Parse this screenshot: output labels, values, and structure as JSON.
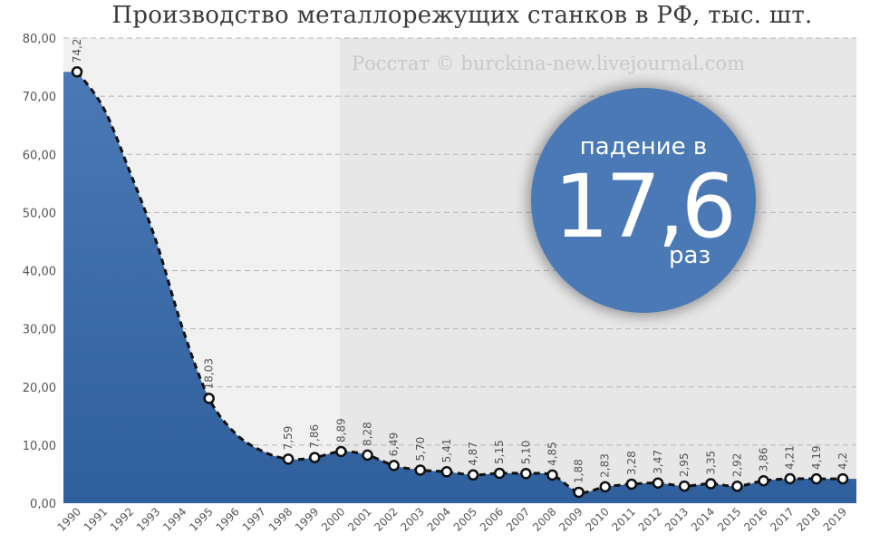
{
  "chart_data": {
    "type": "area",
    "title": "Производство металлорежущих станков в РФ, тыс. шт.",
    "watermark": "Росстат © burckina-new.livejournal.com",
    "callout": {
      "line1": "падение в",
      "number": "17,6",
      "line2": "раз"
    },
    "x": [
      "1990",
      "1991",
      "1992",
      "1993",
      "1994",
      "1995",
      "1996",
      "1997",
      "1998",
      "1999",
      "2000",
      "2001",
      "2002",
      "2003",
      "2004",
      "2005",
      "2006",
      "2007",
      "2008",
      "2009",
      "2010",
      "2011",
      "2012",
      "2013",
      "2014",
      "2015",
      "2016",
      "2017",
      "2018",
      "2019"
    ],
    "labeled_points": [
      {
        "x": "1990",
        "y": 74.2,
        "label": "74,2"
      },
      {
        "x": "1995",
        "y": 18.03,
        "label": "18,03"
      },
      {
        "x": "1998",
        "y": 7.59,
        "label": "7,59"
      },
      {
        "x": "1999",
        "y": 7.86,
        "label": "7,86"
      },
      {
        "x": "2000",
        "y": 8.89,
        "label": "8,89"
      },
      {
        "x": "2001",
        "y": 8.28,
        "label": "8,28"
      },
      {
        "x": "2002",
        "y": 6.49,
        "label": "6,49"
      },
      {
        "x": "2003",
        "y": 5.7,
        "label": "5,70"
      },
      {
        "x": "2004",
        "y": 5.41,
        "label": "5,41"
      },
      {
        "x": "2005",
        "y": 4.87,
        "label": "4,87"
      },
      {
        "x": "2006",
        "y": 5.15,
        "label": "5,15"
      },
      {
        "x": "2007",
        "y": 5.1,
        "label": "5,10"
      },
      {
        "x": "2008",
        "y": 4.85,
        "label": "4,85"
      },
      {
        "x": "2009",
        "y": 1.88,
        "label": "1,88"
      },
      {
        "x": "2010",
        "y": 2.83,
        "label": "2,83"
      },
      {
        "x": "2011",
        "y": 3.28,
        "label": "3,28"
      },
      {
        "x": "2012",
        "y": 3.47,
        "label": "3,47"
      },
      {
        "x": "2013",
        "y": 2.95,
        "label": "2,95"
      },
      {
        "x": "2014",
        "y": 3.35,
        "label": "3,35"
      },
      {
        "x": "2015",
        "y": 2.92,
        "label": "2,92"
      },
      {
        "x": "2016",
        "y": 3.86,
        "label": "3,86"
      },
      {
        "x": "2017",
        "y": 4.21,
        "label": "4,21"
      },
      {
        "x": "2018",
        "y": 4.19,
        "label": "4,19"
      },
      {
        "x": "2019",
        "y": 4.2,
        "label": "4,2"
      }
    ],
    "interpolated_curve": [
      {
        "x": "1991",
        "y": 68
      },
      {
        "x": "1992",
        "y": 57
      },
      {
        "x": "1993",
        "y": 45
      },
      {
        "x": "1994",
        "y": 30
      },
      {
        "x": "1996",
        "y": 12
      },
      {
        "x": "1997",
        "y": 9
      }
    ],
    "y_ticks": [
      "0,00",
      "10,00",
      "20,00",
      "30,00",
      "40,00",
      "50,00",
      "60,00",
      "70,00",
      "80,00"
    ],
    "ylim": [
      0,
      80
    ],
    "grid": true,
    "colors": {
      "area": "#4a79b5",
      "area_dark": "#2f5f9c",
      "line": "#111111",
      "marker_fill": "#ffffff",
      "plot_bg_left": "#f1f1f1",
      "plot_bg_right": "#e7e7e7",
      "grid": "#b5b5b5",
      "callout": "#4a79b5"
    }
  }
}
